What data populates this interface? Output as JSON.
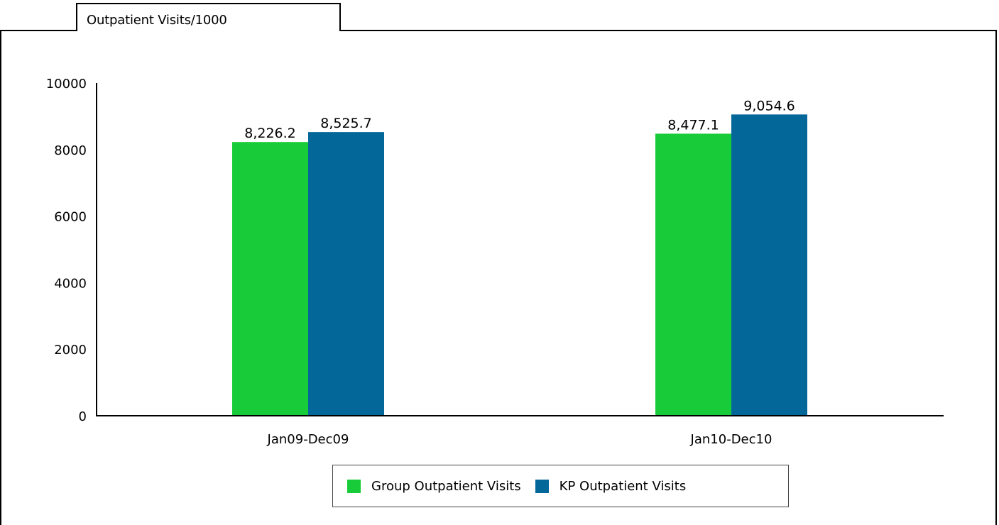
{
  "panel": {
    "title": "Outpatient Visits/1000"
  },
  "chart_data": {
    "type": "bar",
    "title": "Outpatient Visits/1000",
    "xlabel": "",
    "ylabel": "",
    "categories": [
      "Jan09-Dec09",
      "Jan10-Dec10"
    ],
    "series": [
      {
        "name": "Group Outpatient Visits",
        "values": [
          8226.2,
          8477.1
        ],
        "value_labels": [
          "8,226.2",
          "8,477.1"
        ],
        "color": "#17cc38"
      },
      {
        "name": "KP Outpatient Visits",
        "values": [
          8525.7,
          9054.6
        ],
        "value_labels": [
          "8,525.7",
          "9,054.6"
        ],
        "color": "#04679a"
      }
    ],
    "ylim": [
      0,
      10000
    ],
    "yticks": [
      "0",
      "2000",
      "4000",
      "6000",
      "8000",
      "10000"
    ],
    "grid": false,
    "legend": "bottom-center"
  }
}
